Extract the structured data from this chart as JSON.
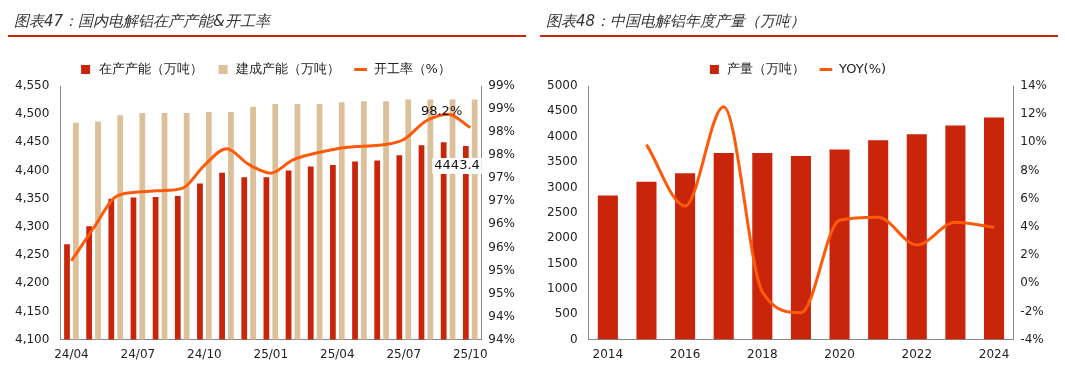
{
  "chart_data": [
    {
      "type": "bar",
      "title": "图表47：国内电解铝在产产能&开工率",
      "categories": [
        "24/04",
        null,
        null,
        "24/07",
        null,
        null,
        "24/10",
        null,
        null,
        "25/01",
        null,
        null,
        "25/04",
        null,
        null,
        "25/07",
        null,
        null,
        "25/10"
      ],
      "series": [
        {
          "name": "在产产能（万吨）",
          "color": "#c8250a",
          "values": [
            4269,
            4301,
            4350,
            4352,
            4353,
            4355,
            4377,
            4396,
            4388,
            4388,
            4400,
            4407,
            4410,
            4416,
            4418,
            4427,
            4445,
            4450,
            4443.4
          ],
          "value_labels": [
            null,
            null,
            null,
            null,
            null,
            null,
            null,
            null,
            null,
            null,
            null,
            null,
            null,
            null,
            null,
            null,
            null,
            null,
            "4443.4"
          ]
        },
        {
          "name": "建成产能（万吨）",
          "color": "#dcc099",
          "values": [
            4485,
            4487,
            4498,
            4502,
            4502,
            4502,
            4504,
            4504,
            4513,
            4518,
            4518,
            4518,
            4521,
            4523,
            4523,
            4526,
            4526,
            4526,
            4526
          ]
        },
        {
          "name": "开工率（%）",
          "type": "line",
          "axis": "y2",
          "color": "#ff5a0a",
          "values": [
            95.31,
            96.02,
            96.7,
            96.8,
            96.83,
            96.88,
            97.38,
            97.74,
            97.4,
            97.21,
            97.5,
            97.64,
            97.74,
            97.79,
            97.82,
            97.94,
            98.34,
            98.49,
            98.2
          ],
          "value_labels": [
            null,
            null,
            null,
            null,
            null,
            null,
            null,
            null,
            null,
            null,
            null,
            null,
            null,
            null,
            null,
            null,
            null,
            null,
            "98.2%"
          ]
        }
      ],
      "ylim": [
        4100,
        4550
      ],
      "yticks": [
        {
          "value": 4100,
          "label": "4,100"
        },
        {
          "value": 4150,
          "label": "4,150"
        },
        {
          "value": 4200,
          "label": "4,200"
        },
        {
          "value": 4250,
          "label": "4,250"
        },
        {
          "value": 4300,
          "label": "4,300"
        },
        {
          "value": 4350,
          "label": "4,350"
        },
        {
          "value": 4400,
          "label": "4,400"
        },
        {
          "value": 4450,
          "label": "4,450"
        },
        {
          "value": 4500,
          "label": "4,500"
        },
        {
          "value": 4550,
          "label": "4,550"
        }
      ],
      "y2lim": [
        93.6,
        99.1
      ],
      "y2ticks": [
        {
          "value": 93.6,
          "label": "94%"
        },
        {
          "value": 94.1,
          "label": "94%"
        },
        {
          "value": 94.6,
          "label": "95%"
        },
        {
          "value": 95.1,
          "label": "95%"
        },
        {
          "value": 95.6,
          "label": "96%"
        },
        {
          "value": 96.1,
          "label": "96%"
        },
        {
          "value": 96.6,
          "label": "97%"
        },
        {
          "value": 97.1,
          "label": "97%"
        },
        {
          "value": 97.6,
          "label": "98%"
        },
        {
          "value": 98.1,
          "label": "98%"
        },
        {
          "value": 98.6,
          "label": "99%"
        },
        {
          "value": 99.1,
          "label": "99%"
        }
      ],
      "legend": "top",
      "grid": false,
      "marker": "none",
      "line_style": "solid"
    },
    {
      "type": "bar",
      "title": "图表48：中国电解铝年度产量（万吨）",
      "categories": [
        "2014",
        null,
        "2016",
        null,
        "2018",
        null,
        "2020",
        null,
        "2022",
        null,
        "2024"
      ],
      "series": [
        {
          "name": "产量（万吨）",
          "color": "#c8250a",
          "values": [
            2840,
            3110,
            3280,
            3680,
            3680,
            3620,
            3750,
            3930,
            4050,
            4220,
            4380
          ]
        },
        {
          "name": "YOY(%)",
          "type": "line",
          "axis": "y2",
          "color": "#ff5a0a",
          "values": [
            null,
            9.84,
            5.49,
            12.53,
            -0.6,
            -2.1,
            4.47,
            4.68,
            2.72,
            4.33,
            3.98
          ]
        }
      ],
      "ylim": [
        0,
        5000
      ],
      "yticks": [
        0,
        500,
        1000,
        1500,
        2000,
        2500,
        3000,
        3500,
        4000,
        4500,
        5000
      ],
      "y2lim": [
        -4,
        14
      ],
      "y2ticks": [
        {
          "value": -4,
          "label": "-4%"
        },
        {
          "value": -2,
          "label": "-2%"
        },
        {
          "value": 0,
          "label": "0%"
        },
        {
          "value": 2,
          "label": "2%"
        },
        {
          "value": 4,
          "label": "4%"
        },
        {
          "value": 6,
          "label": "6%"
        },
        {
          "value": 8,
          "label": "8%"
        },
        {
          "value": 10,
          "label": "10%"
        },
        {
          "value": 12,
          "label": "12%"
        },
        {
          "value": 14,
          "label": "14%"
        }
      ],
      "legend": "top",
      "grid": false,
      "marker": "none",
      "line_style": "solid"
    }
  ]
}
